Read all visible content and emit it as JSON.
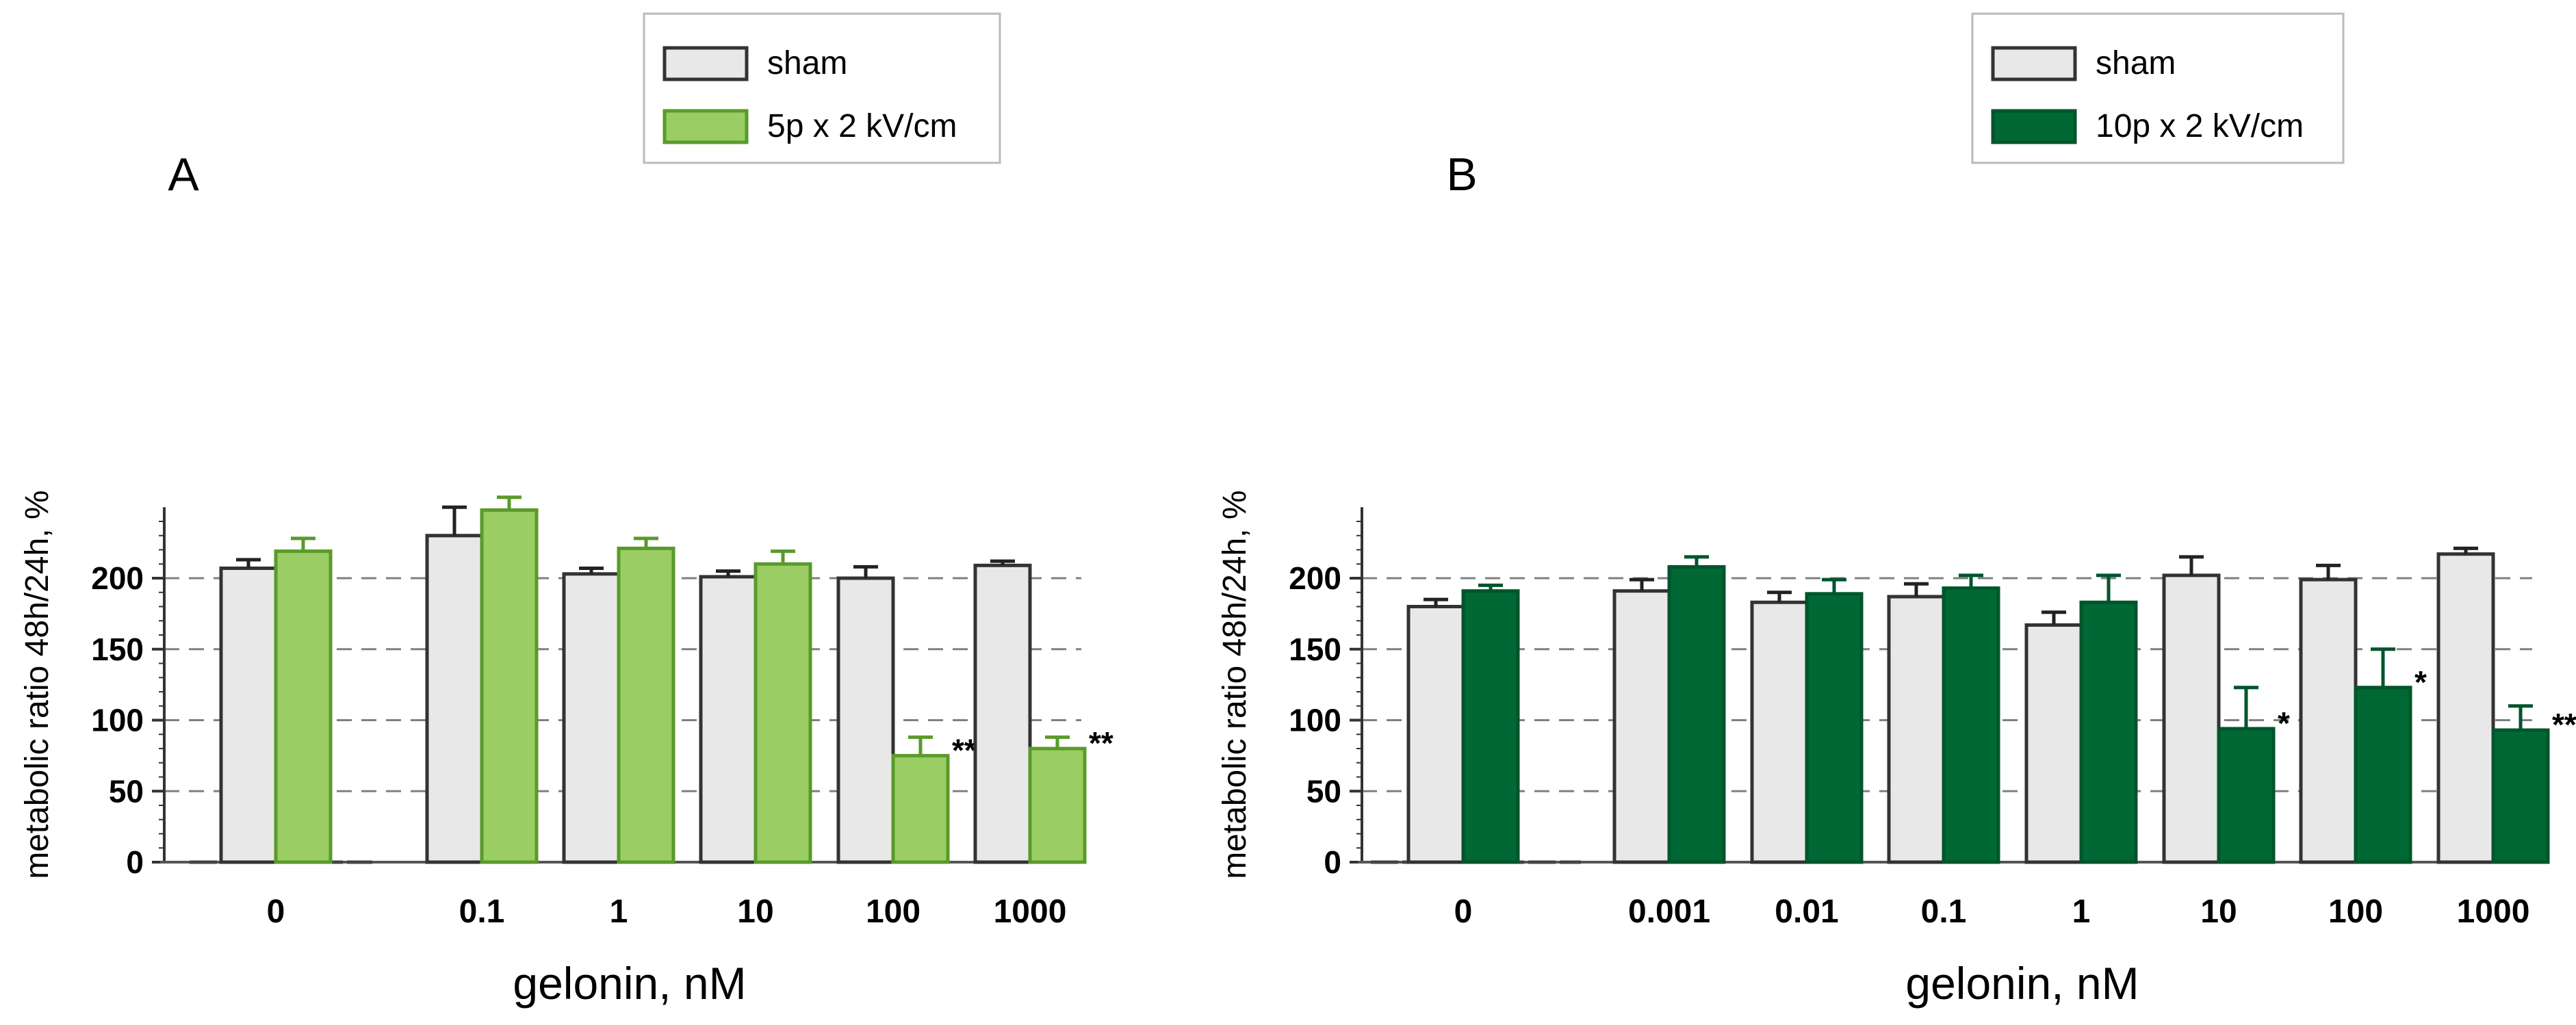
{
  "chart_data": [
    {
      "type": "bar",
      "panel_label": "A",
      "title": "",
      "xlabel": "gelonin, nM",
      "ylabel": "metabolic ratio 48h/24h, %",
      "ylim": [
        0,
        250
      ],
      "yticks": [
        0,
        50,
        100,
        150,
        200
      ],
      "grid": "horizontal dashed at 50, 100, 150, 200",
      "categories": [
        "0",
        "0.1",
        "1",
        "10",
        "100",
        "1000"
      ],
      "series": [
        {
          "name": "sham",
          "color": "#e8e8e8",
          "edge": "#333333",
          "values": [
            207,
            230,
            203,
            201,
            200,
            209
          ],
          "errors": [
            6,
            20,
            4,
            4,
            8,
            3
          ]
        },
        {
          "name": "5p x 2 kV/cm",
          "color": "#9bcd65",
          "edge": "#5a9a2a",
          "values": [
            219,
            248,
            221,
            210,
            75,
            80
          ],
          "errors": [
            9,
            9,
            7,
            9,
            13,
            8
          ]
        }
      ],
      "significance": [
        "",
        "",
        "",
        "",
        "**",
        "**"
      ],
      "legend": {
        "position": "top-center",
        "entries": [
          "sham",
          "5p x 2 kV/cm"
        ]
      }
    },
    {
      "type": "bar",
      "panel_label": "B",
      "title": "",
      "xlabel": "gelonin, nM",
      "ylabel": "metabolic ratio 48h/24h, %",
      "ylim": [
        0,
        250
      ],
      "yticks": [
        0,
        50,
        100,
        150,
        200
      ],
      "grid": "horizontal dashed at 50, 100, 150, 200",
      "categories": [
        "0",
        "0.001",
        "0.01",
        "0.1",
        "1",
        "10",
        "100",
        "1000"
      ],
      "series": [
        {
          "name": "sham",
          "color": "#e8e8e8",
          "edge": "#333333",
          "values": [
            180,
            191,
            183,
            187,
            167,
            202,
            199,
            217
          ],
          "errors": [
            5,
            8,
            7,
            9,
            9,
            13,
            10,
            4
          ]
        },
        {
          "name": "10p x 2 kV/cm",
          "color": "#006835",
          "edge": "#00552b",
          "values": [
            191,
            208,
            189,
            193,
            183,
            94,
            123,
            93
          ],
          "errors": [
            4,
            7,
            10,
            9,
            19,
            29,
            27,
            17
          ]
        }
      ],
      "significance": [
        "",
        "",
        "",
        "",
        "",
        "*",
        "*",
        "**"
      ],
      "legend": {
        "position": "top-right",
        "entries": [
          "sham",
          "10p x 2 kV/cm"
        ]
      }
    }
  ]
}
